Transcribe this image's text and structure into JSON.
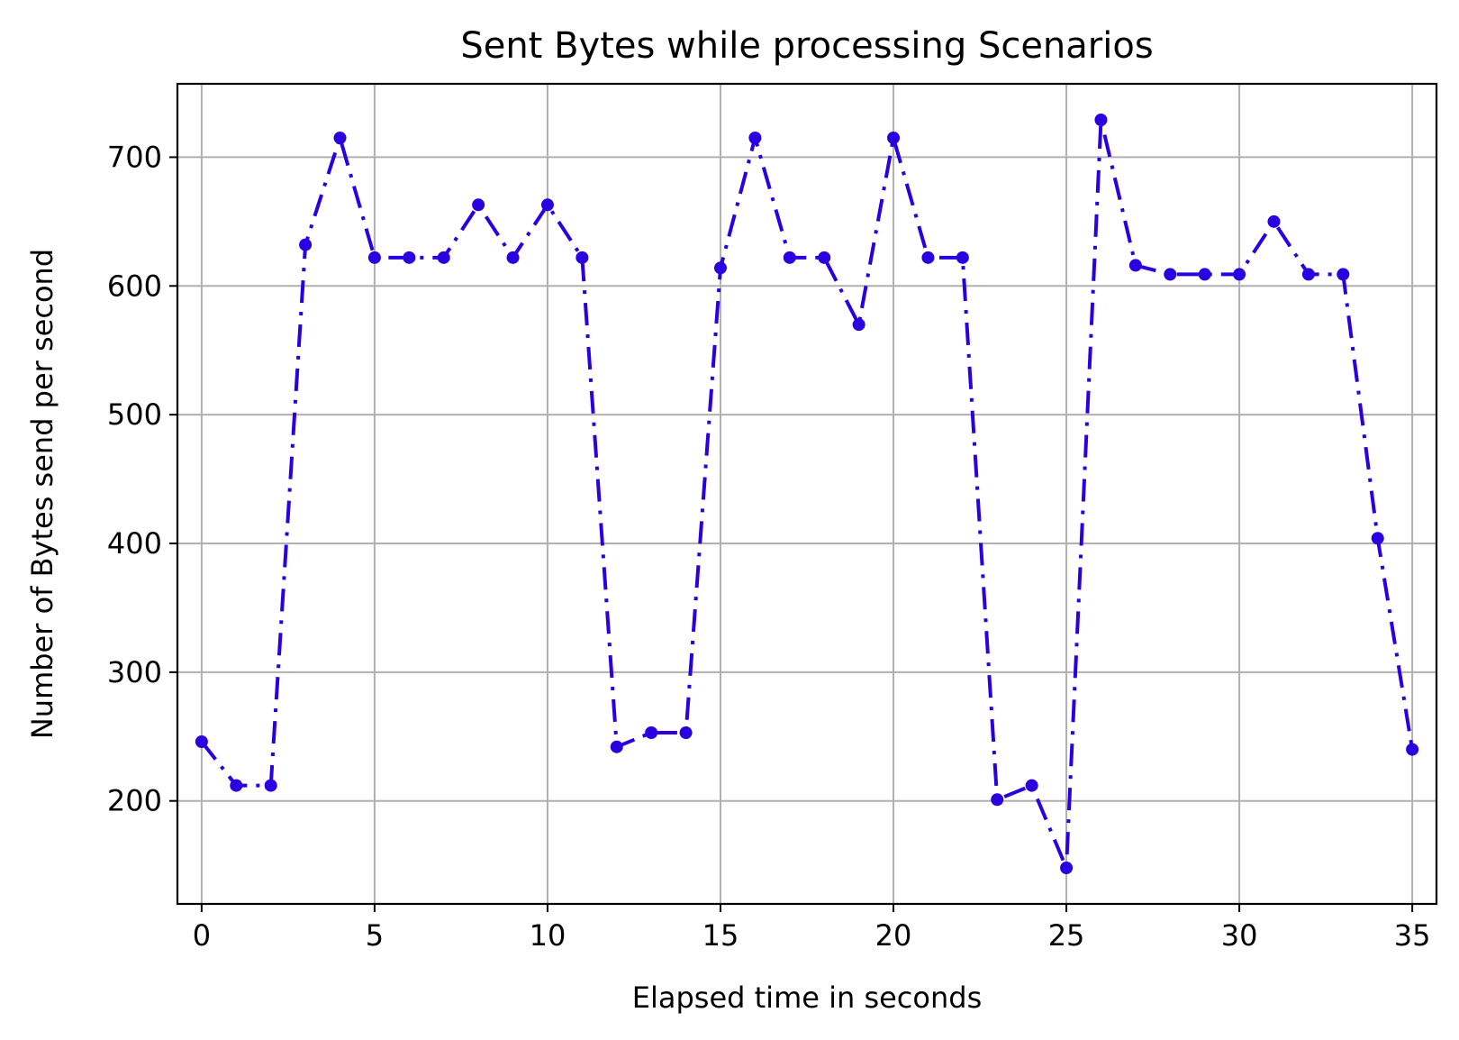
{
  "chart_data": {
    "type": "line",
    "title": "Sent Bytes while processing Scenarios",
    "xlabel": "Elapsed time in seconds",
    "ylabel": "Number of Bytes send per second",
    "xlim": [
      -0.7,
      35.7
    ],
    "ylim": [
      120,
      757
    ],
    "xticks": [
      0,
      5,
      10,
      15,
      20,
      25,
      30,
      35
    ],
    "yticks": [
      200,
      300,
      400,
      500,
      600,
      700
    ],
    "grid": true,
    "line_style": "dash-dot",
    "marker": "circle",
    "color": "#2a00e0",
    "series": [
      {
        "x": [
          0,
          1,
          2,
          3,
          4,
          5,
          6,
          7,
          8,
          9,
          10,
          11,
          12,
          13,
          14,
          15,
          16,
          17,
          18,
          19,
          20,
          21,
          22,
          23,
          24,
          25,
          26,
          27,
          28,
          29,
          30,
          31,
          32,
          33,
          34,
          35
        ],
        "values": [
          246,
          212,
          212,
          632,
          715,
          622,
          622,
          622,
          663,
          622,
          663,
          622,
          242,
          253,
          253,
          614,
          715,
          622,
          622,
          570,
          715,
          622,
          622,
          201,
          212,
          148,
          729,
          616,
          609,
          609,
          609,
          650,
          609,
          609,
          404,
          240
        ]
      }
    ]
  }
}
